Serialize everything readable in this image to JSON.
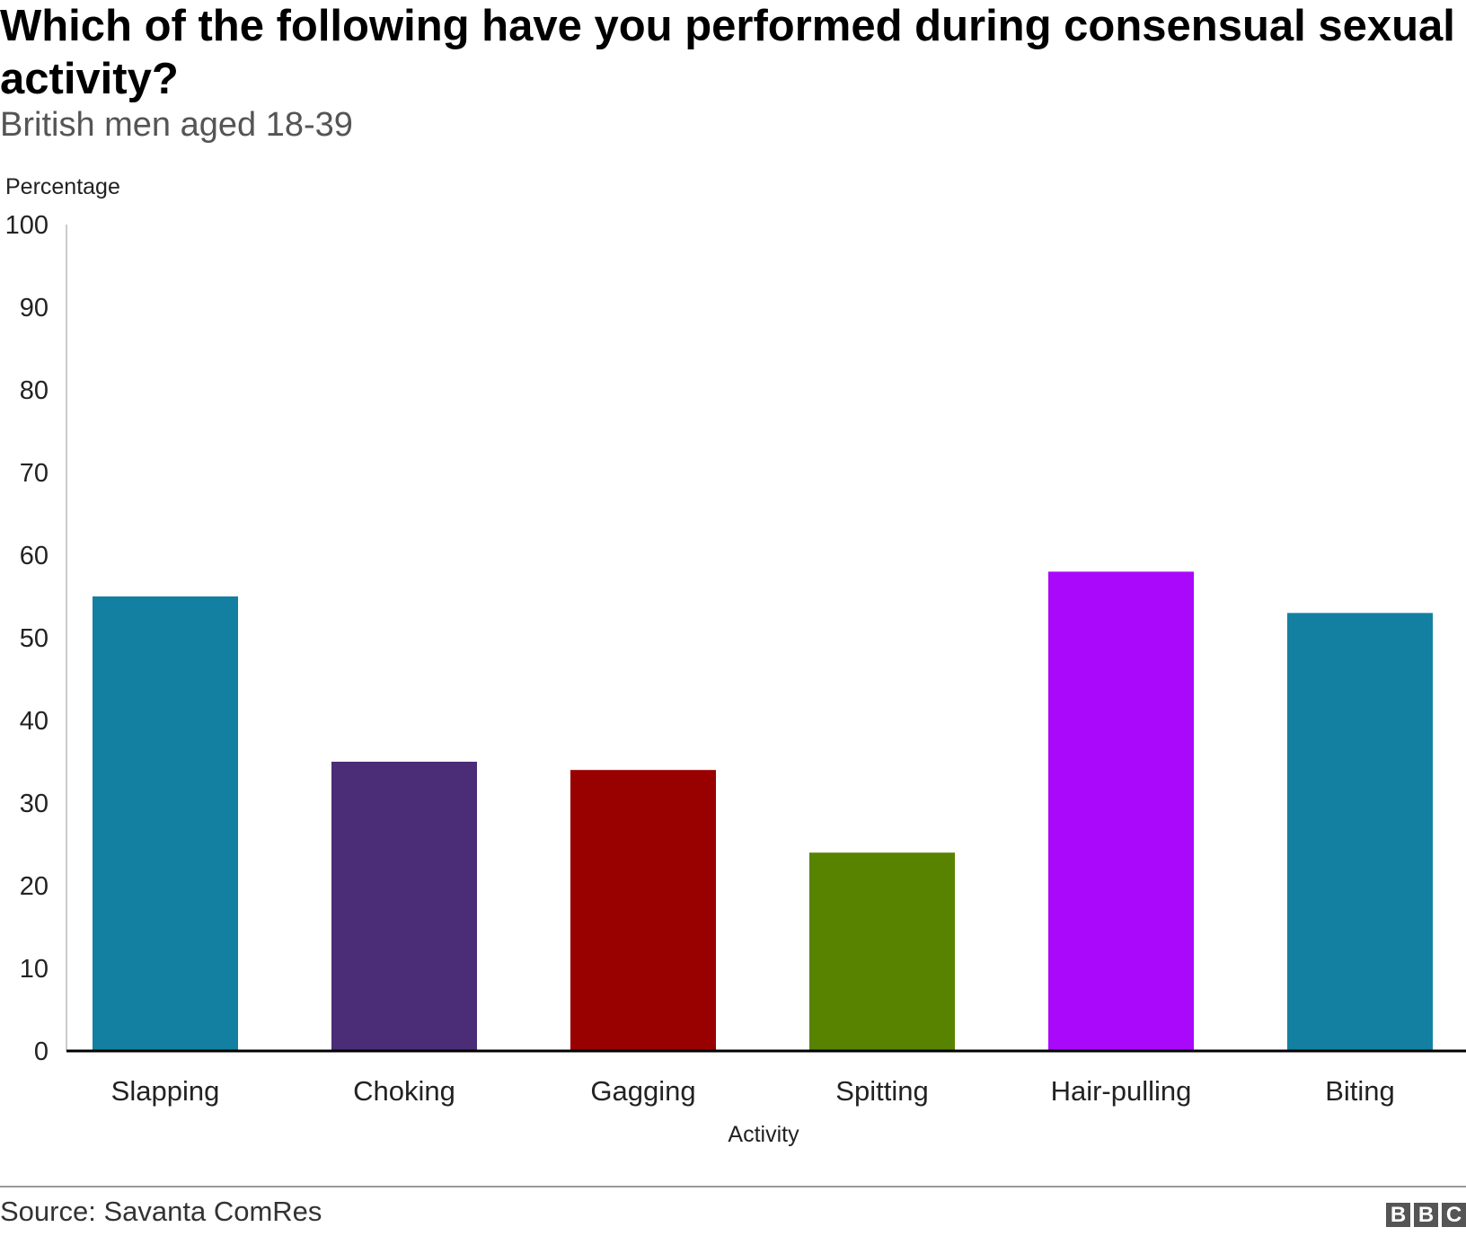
{
  "title": "Which of the following have you performed during consensual sexual activity?",
  "subtitle": "British men aged 18-39",
  "source": "Source: Savanta ComRes",
  "logo_letters": [
    "B",
    "B",
    "C"
  ],
  "chart_data": {
    "type": "bar",
    "title": "Which of the following have you performed during consensual sexual activity?",
    "subtitle": "British men aged 18-39",
    "xlabel": "Activity",
    "ylabel": "Percentage",
    "ylim": [
      0,
      100
    ],
    "yticks": [
      0,
      10,
      20,
      30,
      40,
      50,
      60,
      70,
      80,
      90,
      100
    ],
    "grid": false,
    "categories": [
      "Slapping",
      "Choking",
      "Gagging",
      "Spitting",
      "Hair-pulling",
      "Biting"
    ],
    "values": [
      55,
      35,
      34,
      24,
      58,
      53
    ],
    "colors": [
      "#1380A1",
      "#4B2C77",
      "#990000",
      "#588300",
      "#AA08FA",
      "#1380A1"
    ]
  }
}
